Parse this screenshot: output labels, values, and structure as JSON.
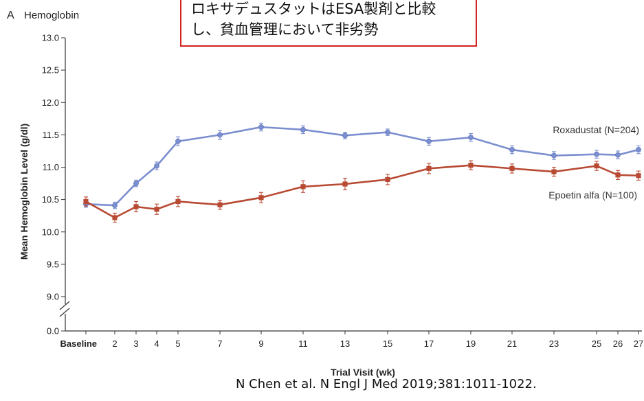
{
  "annotation": {
    "lines": [
      "ロキサデュスタットはESA製剤と比較",
      "し、貧血管理において非劣勢"
    ]
  },
  "citation": "N Chen et al. N Engl J Med 2019;381:1011-1022.",
  "chart_data": {
    "type": "line",
    "panel_letter": "A",
    "title": "Hemoglobin",
    "xlabel": "Trial Visit (wk)",
    "ylabel": "Mean Hemoglobin Level (g/dl)",
    "x_tick_labels": [
      "Baseline",
      "2",
      "3",
      "4",
      "5",
      "7",
      "9",
      "11",
      "13",
      "15",
      "17",
      "19",
      "21",
      "23",
      "25",
      "26",
      "27"
    ],
    "y_ticks": [
      "0.0",
      "9.0",
      "9.5",
      "10.0",
      "10.5",
      "11.0",
      "11.5",
      "12.0",
      "12.5",
      "13.0"
    ],
    "ylim": [
      9.0,
      13.0
    ],
    "y_axis_break": true,
    "series": [
      {
        "name": "Roxadustat (N=204)",
        "color": "#7b8fd0",
        "marker": "circle",
        "values": [
          10.43,
          10.41,
          10.75,
          11.02,
          11.4,
          11.5,
          11.62,
          11.58,
          11.49,
          11.54,
          11.4,
          11.46,
          11.27,
          11.18,
          11.2,
          11.19,
          11.27
        ],
        "errors": [
          0.05,
          0.05,
          0.05,
          0.06,
          0.07,
          0.07,
          0.06,
          0.06,
          0.05,
          0.05,
          0.06,
          0.06,
          0.06,
          0.06,
          0.06,
          0.06,
          0.06
        ]
      },
      {
        "name": "Epoetin alfa (N=100)",
        "color": "#b84a33",
        "marker": "square",
        "values": [
          10.47,
          10.22,
          10.39,
          10.35,
          10.47,
          10.42,
          10.53,
          10.7,
          10.74,
          10.81,
          10.98,
          11.03,
          10.98,
          10.93,
          11.02,
          10.88,
          10.87
        ],
        "errors": [
          0.07,
          0.07,
          0.08,
          0.08,
          0.08,
          0.07,
          0.08,
          0.09,
          0.09,
          0.08,
          0.08,
          0.07,
          0.07,
          0.07,
          0.07,
          0.07,
          0.07
        ]
      }
    ]
  }
}
